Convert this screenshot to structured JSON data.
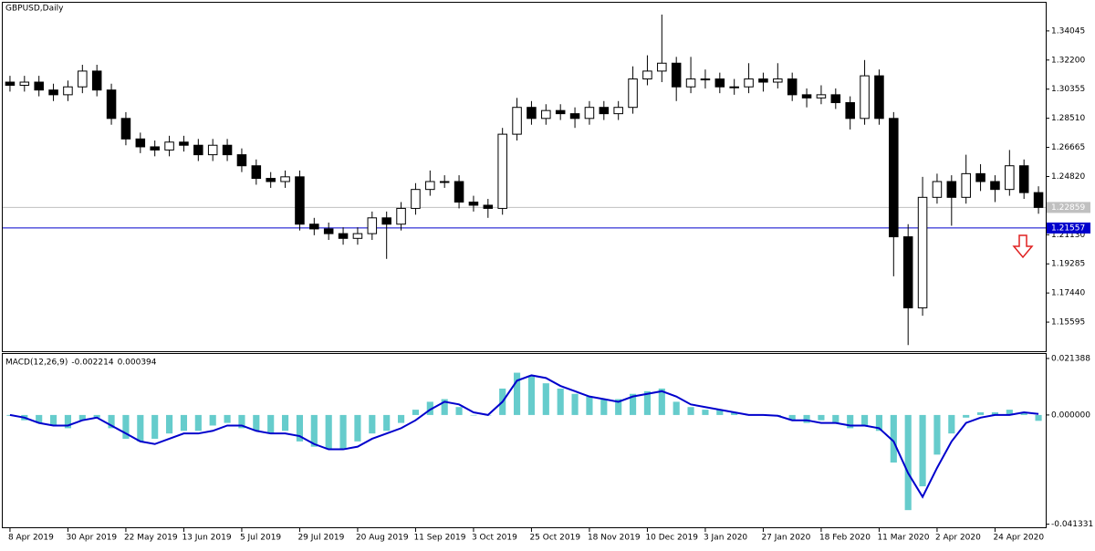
{
  "chart_data": [
    {
      "type": "candlestick",
      "title": "GBPUSD,Daily",
      "categories": [
        "8 Apr 2019",
        null,
        null,
        null,
        "30 Apr 2019",
        null,
        null,
        null,
        "22 May 2019",
        null,
        null,
        null,
        "13 Jun 2019",
        null,
        null,
        null,
        "5 Jul 2019",
        null,
        null,
        null,
        "29 Jul 2019",
        null,
        null,
        null,
        "20 Aug 2019",
        null,
        null,
        null,
        "11 Sep 2019",
        null,
        null,
        null,
        "3 Oct 2019",
        null,
        null,
        null,
        "25 Oct 2019",
        null,
        null,
        null,
        "18 Nov 2019",
        null,
        null,
        null,
        "10 Dec 2019",
        null,
        null,
        null,
        "3 Jan 2020",
        null,
        null,
        null,
        "27 Jan 2020",
        null,
        null,
        null,
        "18 Feb 2020",
        null,
        null,
        null,
        "11 Mar 2020",
        null,
        null,
        null,
        "2 Apr 2020",
        null,
        null,
        null,
        "24 Apr 2020",
        null,
        null,
        null
      ],
      "open": [
        1.308,
        1.306,
        1.308,
        1.303,
        1.3,
        1.305,
        1.315,
        1.303,
        1.285,
        1.272,
        1.267,
        1.265,
        1.27,
        1.268,
        1.262,
        1.268,
        1.262,
        1.255,
        1.247,
        1.245,
        1.248,
        1.218,
        1.215,
        1.212,
        1.209,
        1.212,
        1.222,
        1.218,
        1.228,
        1.24,
        1.245,
        1.245,
        1.232,
        1.23,
        1.228,
        1.275,
        1.292,
        1.285,
        1.29,
        1.288,
        1.285,
        1.292,
        1.288,
        1.292,
        1.31,
        1.315,
        1.32,
        1.305,
        1.31,
        1.31,
        1.305,
        1.305,
        1.31,
        1.308,
        1.31,
        1.3,
        1.298,
        1.3,
        1.295,
        1.285,
        1.312,
        1.285,
        1.21,
        1.165,
        1.235,
        1.245,
        1.235,
        1.25,
        1.245,
        1.24,
        1.255,
        1.238
      ],
      "high": [
        1.312,
        1.312,
        1.312,
        1.307,
        1.309,
        1.319,
        1.319,
        1.307,
        1.289,
        1.276,
        1.271,
        1.274,
        1.274,
        1.272,
        1.272,
        1.272,
        1.266,
        1.259,
        1.251,
        1.252,
        1.252,
        1.222,
        1.219,
        1.216,
        1.216,
        1.226,
        1.226,
        1.232,
        1.244,
        1.252,
        1.249,
        1.249,
        1.236,
        1.234,
        1.279,
        1.298,
        1.296,
        1.294,
        1.294,
        1.292,
        1.296,
        1.296,
        1.296,
        1.318,
        1.325,
        1.3508,
        1.324,
        1.324,
        1.316,
        1.314,
        1.31,
        1.32,
        1.314,
        1.32,
        1.314,
        1.304,
        1.306,
        1.304,
        1.299,
        1.322,
        1.316,
        1.289,
        1.218,
        1.248,
        1.25,
        1.249,
        1.262,
        1.256,
        1.249,
        1.265,
        1.259,
        1.242
      ],
      "low": [
        1.302,
        1.302,
        1.299,
        1.296,
        1.296,
        1.301,
        1.299,
        1.281,
        1.268,
        1.263,
        1.261,
        1.261,
        1.264,
        1.258,
        1.258,
        1.258,
        1.251,
        1.243,
        1.241,
        1.241,
        1.214,
        1.211,
        1.208,
        1.205,
        1.205,
        1.208,
        1.196,
        1.214,
        1.224,
        1.236,
        1.241,
        1.228,
        1.226,
        1.222,
        1.224,
        1.271,
        1.281,
        1.281,
        1.284,
        1.279,
        1.281,
        1.284,
        1.284,
        1.288,
        1.306,
        1.308,
        1.296,
        1.301,
        1.304,
        1.301,
        1.3,
        1.301,
        1.302,
        1.304,
        1.296,
        1.292,
        1.294,
        1.291,
        1.278,
        1.281,
        1.281,
        1.185,
        1.1414,
        1.16,
        1.231,
        1.217,
        1.231,
        1.239,
        1.232,
        1.236,
        1.234,
        1.2246
      ],
      "close": [
        1.306,
        1.308,
        1.303,
        1.3,
        1.305,
        1.315,
        1.303,
        1.285,
        1.272,
        1.267,
        1.265,
        1.27,
        1.268,
        1.262,
        1.268,
        1.262,
        1.255,
        1.247,
        1.245,
        1.248,
        1.218,
        1.215,
        1.212,
        1.209,
        1.212,
        1.222,
        1.218,
        1.228,
        1.24,
        1.245,
        1.245,
        1.232,
        1.23,
        1.228,
        1.275,
        1.292,
        1.285,
        1.29,
        1.288,
        1.285,
        1.292,
        1.288,
        1.292,
        1.31,
        1.315,
        1.32,
        1.305,
        1.31,
        1.31,
        1.305,
        1.305,
        1.31,
        1.308,
        1.31,
        1.3,
        1.298,
        1.3,
        1.295,
        1.285,
        1.312,
        1.285,
        1.21,
        1.165,
        1.235,
        1.245,
        1.235,
        1.25,
        1.245,
        1.24,
        1.255,
        1.238,
        1.22859
      ],
      "ylim": [
        1.1375,
        1.3583
      ],
      "yticks": [
        1.34045,
        {
          "value": 1.322,
          "label": "1.32200"
        },
        1.30355,
        {
          "value": 1.2851,
          "label": "1.28510"
        },
        1.26665,
        {
          "value": 1.2482,
          "label": "1.24820"
        },
        {
          "value": 1.2113,
          "label": "1.21130"
        },
        1.19285,
        {
          "value": 1.1744,
          "label": "1.17440"
        },
        1.15595
      ],
      "price_line": 1.22859,
      "level_line": 1.21557,
      "level_color": "#0000cc"
    },
    {
      "type": "macd",
      "title": "MACD(12,26,9)",
      "color": "#66cccc",
      "signal_color": "#0000cc",
      "values": [
        -0.0003,
        -0.002,
        -0.003,
        -0.004,
        -0.005,
        -0.002,
        -0.001,
        -0.005,
        -0.009,
        -0.01,
        -0.009,
        -0.007,
        -0.006,
        -0.006,
        -0.004,
        -0.003,
        -0.005,
        -0.006,
        -0.007,
        -0.006,
        -0.01,
        -0.012,
        -0.013,
        -0.013,
        -0.01,
        -0.007,
        -0.006,
        -0.003,
        0.002,
        0.005,
        0.006,
        0.003,
        0.0,
        0.0,
        0.01,
        0.016,
        0.015,
        0.012,
        0.01,
        0.008,
        0.007,
        0.006,
        0.006,
        0.008,
        0.009,
        0.01,
        0.005,
        0.003,
        0.002,
        0.002,
        0.001,
        0.0,
        0.0,
        -0.0003,
        -0.002,
        -0.003,
        -0.002,
        -0.003,
        -0.005,
        -0.004,
        -0.006,
        -0.018,
        -0.036,
        -0.027,
        -0.015,
        -0.007,
        -0.001,
        0.001,
        0.001,
        0.002,
        0.001,
        -0.002214
      ],
      "signal": [
        0.0,
        -0.001,
        -0.003,
        -0.004,
        -0.004,
        -0.002,
        -0.001,
        -0.004,
        -0.007,
        -0.01,
        -0.011,
        -0.009,
        -0.007,
        -0.007,
        -0.006,
        -0.004,
        -0.004,
        -0.006,
        -0.007,
        -0.007,
        -0.008,
        -0.011,
        -0.013,
        -0.013,
        -0.012,
        -0.009,
        -0.007,
        -0.005,
        -0.002,
        0.002,
        0.005,
        0.004,
        0.001,
        0.0,
        0.005,
        0.013,
        0.015,
        0.014,
        0.011,
        0.009,
        0.007,
        0.006,
        0.005,
        0.007,
        0.008,
        0.009,
        0.007,
        0.004,
        0.003,
        0.002,
        0.001,
        0.0,
        0.0,
        -0.0003,
        -0.002,
        -0.002,
        -0.003,
        -0.003,
        -0.004,
        -0.004,
        -0.005,
        -0.01,
        -0.022,
        -0.031,
        -0.02,
        -0.01,
        -0.003,
        -0.001,
        0.0,
        0.0,
        0.001,
        0.000394
      ],
      "ylim": [
        -0.0425,
        0.0231
      ],
      "yticks": [
        0.021388,
        {
          "value": 0,
          "label": "0.000000"
        },
        -0.041331
      ]
    }
  ]
}
